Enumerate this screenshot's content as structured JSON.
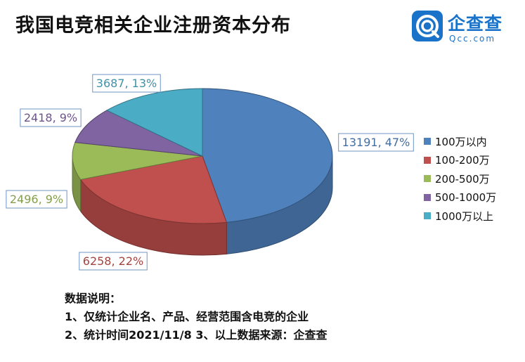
{
  "title": "我国电竞相关企业注册资本分布",
  "logo": {
    "name": "企查查",
    "domain": "Qcc.com",
    "icon": "qcc-logo-icon"
  },
  "chart_data": {
    "type": "pie",
    "title": "我国电竞相关企业注册资本分布",
    "slices": [
      {
        "name": "100万以内",
        "value": 13191,
        "label": "13191, 47%",
        "color": "#4f81bd"
      },
      {
        "name": "100-200万",
        "value": 6258,
        "label": "6258, 22%",
        "color": "#c0504d"
      },
      {
        "name": "200-500万",
        "value": 2496,
        "label": "2496, 9%",
        "color": "#9bbb59"
      },
      {
        "name": "500-1000万",
        "value": 2418,
        "label": "2418, 9%",
        "color": "#8064a2"
      },
      {
        "name": "1000万以上",
        "value": 3687,
        "label": "3687, 13%",
        "color": "#4bacc6"
      }
    ],
    "legend": "right"
  },
  "notes": {
    "heading": "数据说明：",
    "line1": "1、仅统计企业名、产品、经营范围含电竞的企业",
    "line2": "2、统计时间2021/11/8    3、以上数据来源：企查查"
  }
}
